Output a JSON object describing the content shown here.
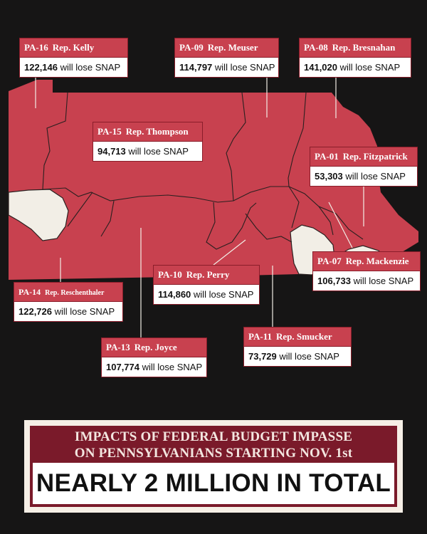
{
  "colors": {
    "background": "#161515",
    "state_fill": "#c8414f",
    "border_lines": "#2a2020",
    "unlabeled_districts": "#f2eee6",
    "callout_header": "#c8414f",
    "callout_body": "#ffffff",
    "banner_frame": "#f6efe6",
    "banner_header": "#7a1a2a"
  },
  "callouts": [
    {
      "district": "PA-16",
      "rep": "Rep. Kelly",
      "count": "122,146",
      "suffix": "will lose SNAP"
    },
    {
      "district": "PA-09",
      "rep": "Rep. Meuser",
      "count": "114,797",
      "suffix": "will lose SNAP"
    },
    {
      "district": "PA-08",
      "rep": "Rep. Bresnahan",
      "count": "141,020",
      "suffix": "will lose SNAP"
    },
    {
      "district": "PA-15",
      "rep": "Rep. Thompson",
      "count": "94,713",
      "suffix": "will lose SNAP"
    },
    {
      "district": "PA-01",
      "rep": "Rep. Fitzpatrick",
      "count": "53,303",
      "suffix": "will lose SNAP"
    },
    {
      "district": "PA-07",
      "rep": "Rep. Mackenzie",
      "count": "106,733",
      "suffix": "will lose SNAP"
    },
    {
      "district": "PA-10",
      "rep": "Rep. Perry",
      "count": "114,860",
      "suffix": "will lose SNAP"
    },
    {
      "district": "PA-14",
      "rep": "Rep. Reschenthaler",
      "count": "122,726",
      "suffix": "will lose SNAP"
    },
    {
      "district": "PA-11",
      "rep": "Rep. Smucker",
      "count": "73,729",
      "suffix": "will lose SNAP"
    },
    {
      "district": "PA-13",
      "rep": "Rep. Joyce",
      "count": "107,774",
      "suffix": "will lose SNAP"
    }
  ],
  "banner": {
    "heading_line1": "IMPACTS OF FEDERAL BUDGET IMPASSE",
    "heading_line2": "ON PENNSYLVANIANS STARTING NOV. 1st",
    "total": "NEARLY 2 MILLION IN TOTAL"
  }
}
